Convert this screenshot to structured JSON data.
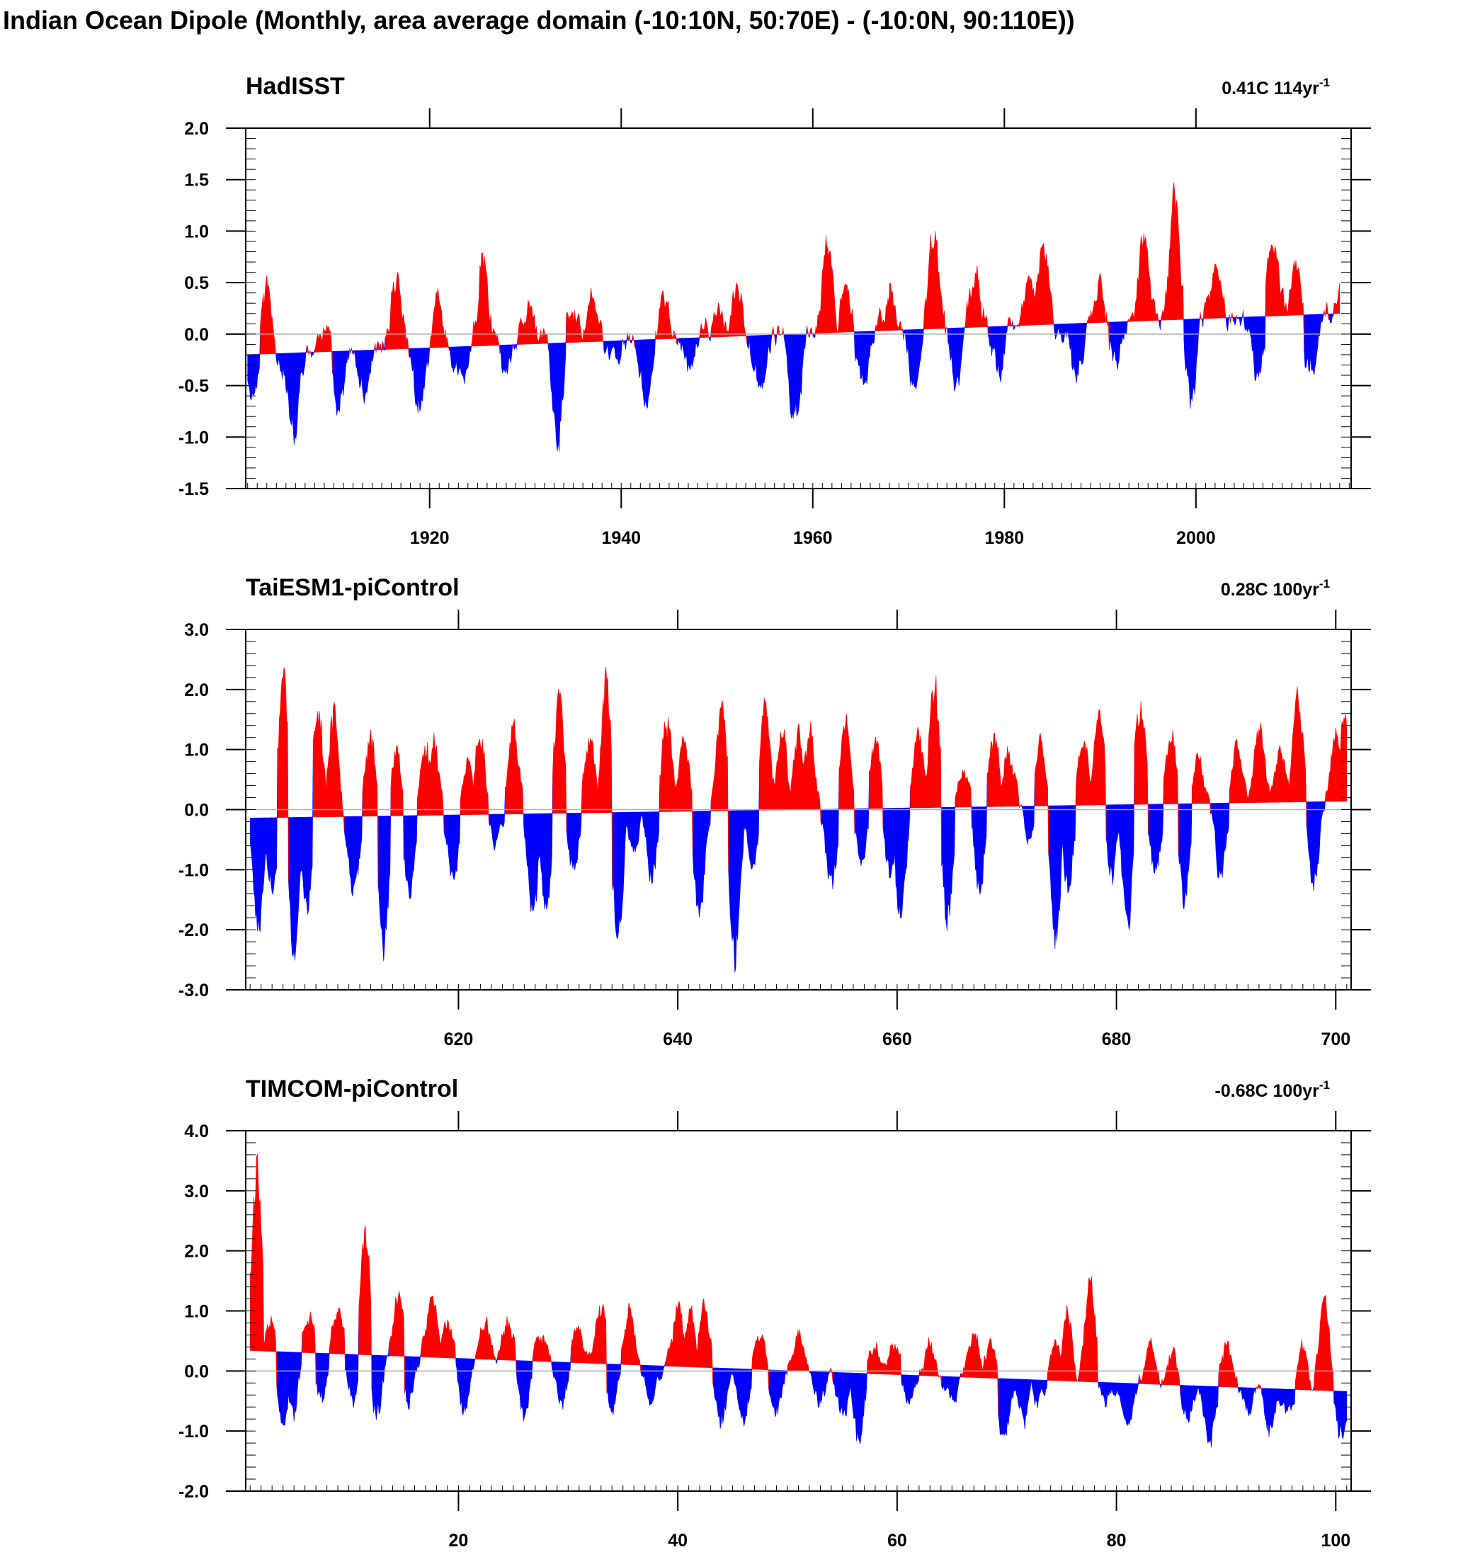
{
  "figure": {
    "title": "Indian Ocean Dipole (Monthly, area average domain (-10:10N, 50:70E) - (-10:0N, 90:110E))"
  },
  "chart_data": [
    {
      "type": "area",
      "title": "HadISST",
      "trend_label": "0.41C 114yr",
      "trend_exponent": "-1",
      "xlim": [
        1900.8,
        2016.2
      ],
      "ylim": [
        -1.5,
        2.0
      ],
      "x_ticks": [
        1920,
        1940,
        1960,
        1980,
        2000
      ],
      "x_tick_labels": [
        "1920",
        "1940",
        "1960",
        "1980",
        "2000"
      ],
      "y_ticks": [
        -1.5,
        -1.0,
        -0.5,
        0.0,
        0.5,
        1.0,
        1.5,
        2.0
      ],
      "y_tick_labels": [
        "-1.5",
        "-1.0",
        "-0.5",
        "0.0",
        "0.5",
        "1.0",
        "1.5",
        "2.0"
      ],
      "trend_line": {
        "x": [
          1901,
          2015
        ],
        "y": [
          -0.2,
          0.2
        ]
      },
      "positive_color": "#ff0000",
      "negative_color": "#0000ff",
      "peaks": {
        "x": [
          1901.5,
          1903,
          1905.8,
          1909,
          1910.5,
          1913,
          1916.5,
          1919,
          1921,
          1923.5,
          1925.6,
          1928,
          1930.5,
          1933.4,
          1935,
          1937,
          1939,
          1942.6,
          1944.5,
          1947,
          1950,
          1952.2,
          1954.6,
          1958.2,
          1961.5,
          1963.4,
          1965.4,
          1968,
          1970.5,
          1972.6,
          1975,
          1977,
          1979.5,
          1982.5,
          1984,
          1987.5,
          1990,
          1991.8,
          1994.5,
          1997.8,
          1999.5,
          2002,
          2006.5,
          2008,
          2010.5,
          2012,
          2015
        ],
        "y": [
          -0.6,
          0.55,
          -1.2,
          0.1,
          -0.7,
          -0.65,
          0.7,
          -0.85,
          0.45,
          -0.45,
          0.75,
          -0.45,
          0.35,
          -1.15,
          0.3,
          0.4,
          -0.3,
          -0.75,
          0.45,
          -0.4,
          0.3,
          0.5,
          -0.5,
          -0.95,
          1.05,
          0.6,
          -0.65,
          0.5,
          -0.5,
          1.0,
          -0.6,
          0.6,
          -0.5,
          0.5,
          0.95,
          -0.45,
          0.55,
          -0.35,
          0.95,
          1.5,
          -0.7,
          0.65,
          -0.55,
          0.9,
          0.7,
          -0.55,
          0.45
        ]
      },
      "seed": 11
    },
    {
      "type": "area",
      "title": "TaiESM1-piControl",
      "trend_label": "0.28C 100yr",
      "trend_exponent": "-1",
      "xlim": [
        600.6,
        701.4
      ],
      "ylim": [
        -3.0,
        3.0
      ],
      "x_ticks": [
        620,
        640,
        660,
        680,
        700
      ],
      "x_tick_labels": [
        "620",
        "640",
        "660",
        "680",
        "700"
      ],
      "y_ticks": [
        -3.0,
        -2.0,
        -1.0,
        0.0,
        1.0,
        2.0,
        3.0
      ],
      "y_tick_labels": [
        "-3.0",
        "-2.0",
        "-1.0",
        "0.0",
        "1.0",
        "2.0",
        "3.0"
      ],
      "trend_line": {
        "x": [
          601,
          701
        ],
        "y": [
          -0.14,
          0.14
        ]
      },
      "positive_color": "#ff0000",
      "negative_color": "#0000ff",
      "peaks": {
        "x": [
          601.8,
          603,
          604,
          605,
          606.2,
          607.2,
          608.6,
          610.5,
          612,
          613.2,
          614.4,
          615.5,
          617,
          617.8,
          619.5,
          620.8,
          622,
          623.5,
          625,
          626.8,
          628,
          629.2,
          630.5,
          632,
          633.5,
          634.5,
          636,
          637.6,
          639,
          640.6,
          642,
          644,
          645.2,
          646.8,
          648,
          649.5,
          651,
          652,
          654,
          655.3,
          656.8,
          658,
          659.4,
          660.3,
          662,
          663.4,
          664.6,
          666,
          667.5,
          668.8,
          670.2,
          672,
          673,
          674.5,
          675.6,
          677,
          678.4,
          679.6,
          681,
          682.2,
          683.5,
          685,
          686.2,
          687.5,
          689.5,
          691,
          693,
          695,
          696.5,
          698,
          700,
          700.8
        ],
        "y": [
          -2.1,
          -1.4,
          2.5,
          -2.5,
          -1.75,
          1.9,
          1.8,
          -1.5,
          1.35,
          -2.35,
          1.1,
          -1.45,
          1.2,
          1.3,
          -1.2,
          0.8,
          1.4,
          -0.6,
          1.5,
          -1.9,
          -1.75,
          2.1,
          -1.15,
          1.4,
          2.35,
          -2.35,
          -0.9,
          -1.3,
          1.6,
          1.4,
          -2.1,
          1.9,
          -2.7,
          -1.1,
          1.95,
          1.5,
          1.4,
          1.5,
          -1.6,
          1.6,
          -0.9,
          1.4,
          -1.2,
          -2.1,
          1.5,
          2.35,
          -2.0,
          0.65,
          -1.65,
          1.35,
          1.2,
          -0.5,
          1.3,
          -2.4,
          -1.6,
          1.2,
          1.8,
          -1.3,
          -2.2,
          1.85,
          -1.3,
          1.5,
          -1.55,
          1.1,
          -1.2,
          1.1,
          1.5,
          1.2,
          2.1,
          -1.4,
          1.4,
          1.8
        ]
      },
      "seed": 23
    },
    {
      "type": "area",
      "title": "TIMCOM-piControl",
      "trend_label": "-0.68C 100yr",
      "trend_exponent": "-1",
      "xlim": [
        0.6,
        101.4
      ],
      "ylim": [
        -2.0,
        4.0
      ],
      "x_ticks": [
        20,
        40,
        60,
        80,
        100
      ],
      "x_tick_labels": [
        "20",
        "40",
        "60",
        "80",
        "100"
      ],
      "y_ticks": [
        -2.0,
        -1.0,
        0.0,
        1.0,
        2.0,
        3.0,
        4.0
      ],
      "y_tick_labels": [
        "-2.0",
        "-1.0",
        "0.0",
        "1.0",
        "2.0",
        "3.0",
        "4.0"
      ],
      "trend_line": {
        "x": [
          1,
          101
        ],
        "y": [
          0.34,
          -0.34
        ]
      },
      "positive_color": "#ff0000",
      "negative_color": "#0000ff",
      "peaks": {
        "x": [
          1.6,
          2.8,
          4,
          5,
          6.5,
          7.5,
          9,
          10.3,
          11.5,
          12.6,
          14.6,
          15.5,
          17.6,
          19,
          20.5,
          22.5,
          24.5,
          26,
          27.5,
          29.5,
          31,
          33,
          34,
          35.6,
          37.5,
          40,
          41.2,
          42.4,
          44,
          46,
          47.5,
          49,
          51,
          53,
          55,
          56.5,
          58,
          59.7,
          61,
          63,
          65,
          67,
          68.5,
          69.8,
          71.5,
          72.8,
          74.5,
          75.5,
          77.6,
          79,
          81,
          83,
          85,
          86.5,
          88.5,
          90,
          92,
          94,
          95.5,
          97,
          99,
          100.5
        ],
        "y": [
          3.8,
          1.0,
          -0.9,
          -0.75,
          1.0,
          -0.5,
          1.1,
          -0.6,
          2.55,
          -0.9,
          1.45,
          -0.6,
          1.4,
          0.75,
          -0.7,
          1.0,
          1.0,
          -0.75,
          0.6,
          -0.6,
          0.75,
          1.3,
          -0.85,
          1.0,
          -0.5,
          1.15,
          0.95,
          1.2,
          -0.95,
          -0.85,
          0.6,
          -0.85,
          0.7,
          -0.6,
          -0.9,
          -1.25,
          0.5,
          0.65,
          -0.5,
          0.5,
          -0.6,
          0.7,
          0.45,
          -1.35,
          -0.95,
          -0.6,
          0.6,
          1.05,
          1.75,
          -0.6,
          -0.95,
          0.6,
          0.4,
          -0.9,
          -1.3,
          0.5,
          -0.65,
          -1.0,
          -0.8,
          0.5,
          1.4,
          -1.15
        ]
      },
      "seed": 37
    }
  ]
}
